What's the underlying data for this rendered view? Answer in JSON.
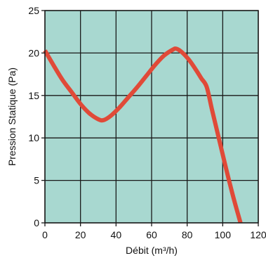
{
  "chart_data": {
    "type": "line",
    "title": "",
    "xlabel": "Débit (m³/h)",
    "ylabel": "Pression Statique (Pa)",
    "xlim": [
      0,
      120
    ],
    "ylim": [
      0,
      25
    ],
    "xticks": [
      "0",
      "20",
      "40",
      "60",
      "80",
      "100",
      "120"
    ],
    "yticks": [
      "0",
      "5",
      "10",
      "15",
      "20",
      "25"
    ],
    "grid": true,
    "legend": "none",
    "colors": {
      "background": "#a8d8d0",
      "line": "#e04a38",
      "grid": "#1a1a1a"
    },
    "series": [
      {
        "x": [
          0,
          5,
          10,
          15,
          20,
          25,
          30,
          33,
          37,
          42,
          47,
          52,
          57,
          62,
          67,
          72,
          74,
          77,
          81,
          85,
          88,
          91,
          94,
          98,
          102,
          106,
          110
        ],
        "values": [
          20.3,
          18.5,
          16.8,
          15.4,
          14.0,
          12.9,
          12.2,
          12.1,
          12.6,
          13.6,
          14.8,
          16.0,
          17.3,
          18.6,
          19.7,
          20.4,
          20.5,
          20.1,
          19.2,
          18.0,
          17.0,
          16.0,
          13.3,
          9.8,
          6.3,
          3.0,
          0.0
        ]
      }
    ]
  }
}
